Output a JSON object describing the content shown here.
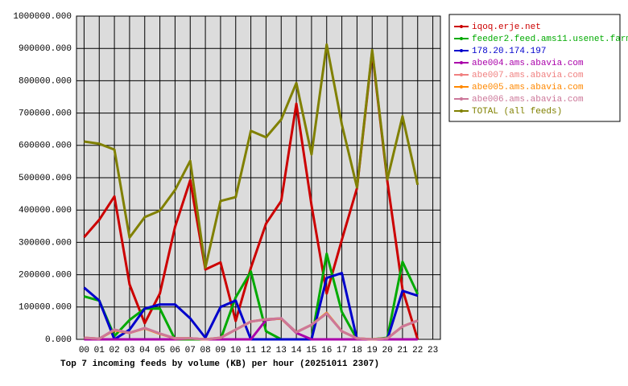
{
  "chart_data": {
    "type": "line",
    "title": "Top 7 incoming feeds by volume (KB) per hour (20251011 2307)",
    "categories": [
      "00",
      "01",
      "02",
      "03",
      "04",
      "05",
      "06",
      "07",
      "08",
      "09",
      "10",
      "11",
      "12",
      "13",
      "14",
      "15",
      "16",
      "17",
      "18",
      "19",
      "20",
      "21",
      "22",
      "23"
    ],
    "ylim": [
      0,
      1000000
    ],
    "yticks": [
      {
        "value": 0,
        "label": "0.000"
      },
      {
        "value": 100000,
        "label": "100000.000"
      },
      {
        "value": 200000,
        "label": "200000.000"
      },
      {
        "value": 300000,
        "label": "300000.000"
      },
      {
        "value": 400000,
        "label": "400000.000"
      },
      {
        "value": 500000,
        "label": "500000.000"
      },
      {
        "value": 600000,
        "label": "600000.000"
      },
      {
        "value": 700000,
        "label": "700000.000"
      },
      {
        "value": 800000,
        "label": "800000.000"
      },
      {
        "value": 900000,
        "label": "900000.000"
      },
      {
        "value": 1000000,
        "label": "1000000.000"
      }
    ],
    "grid": true,
    "legend": "right",
    "series": [
      {
        "name": "iqoq.erje.net",
        "color": "#cc0000",
        "values": [
          316000,
          370000,
          442000,
          170000,
          50000,
          142000,
          348000,
          492000,
          216000,
          238000,
          57000,
          221000,
          358000,
          428000,
          729000,
          415000,
          142000,
          308000,
          468000,
          890000,
          490000,
          155000,
          0,
          null
        ]
      },
      {
        "name": "feeder2.feed.ams11.usenet.farm",
        "color": "#00aa00",
        "values": [
          133000,
          120000,
          10000,
          60000,
          95000,
          95000,
          0,
          0,
          0,
          0,
          130000,
          210000,
          25000,
          0,
          0,
          0,
          265000,
          85000,
          0,
          0,
          5000,
          240000,
          140000,
          null
        ]
      },
      {
        "name": "178.20.174.197",
        "color": "#0000cc",
        "values": [
          160000,
          120000,
          0,
          30000,
          95000,
          108000,
          108000,
          65000,
          5000,
          100000,
          120000,
          0,
          0,
          0,
          0,
          0,
          190000,
          205000,
          0,
          0,
          0,
          150000,
          135000,
          null
        ]
      },
      {
        "name": "abe004.ams.abavia.com",
        "color": "#aa00aa",
        "values": [
          0,
          0,
          0,
          0,
          0,
          0,
          0,
          3000,
          0,
          0,
          0,
          0,
          60000,
          65000,
          20000,
          0,
          0,
          0,
          0,
          0,
          0,
          0,
          0,
          null
        ]
      },
      {
        "name": "abe007.ams.abavia.com",
        "color": "#f08080",
        "values": [
          5000,
          2000,
          30000,
          20000,
          35000,
          18000,
          3000,
          3000,
          0,
          5000,
          30000,
          55000,
          62000,
          65000,
          22000,
          45000,
          80000,
          25000,
          3000,
          0,
          3000,
          40000,
          58000,
          null
        ]
      },
      {
        "name": "abe005.ams.abavia.com",
        "color": "#ff8800",
        "values": [
          5000,
          2000,
          28000,
          20000,
          34000,
          17000,
          3000,
          3000,
          0,
          5000,
          30000,
          55000,
          62000,
          64000,
          22000,
          45000,
          82000,
          25000,
          3000,
          0,
          3000,
          40000,
          58000,
          null
        ]
      },
      {
        "name": "abe006.ams.abavia.com",
        "color": "#cc7799",
        "values": [
          5000,
          2000,
          30000,
          20000,
          35000,
          18000,
          3000,
          3000,
          0,
          5000,
          30000,
          55000,
          62000,
          65000,
          22000,
          45000,
          80000,
          25000,
          3000,
          0,
          3000,
          40000,
          58000,
          null
        ]
      },
      {
        "name": "TOTAL (all feeds)",
        "color": "#808000",
        "values": [
          612000,
          605000,
          587000,
          315000,
          378000,
          398000,
          462000,
          552000,
          222000,
          428000,
          440000,
          645000,
          625000,
          680000,
          793000,
          572000,
          912000,
          665000,
          470000,
          895000,
          495000,
          690000,
          478000,
          null
        ]
      }
    ]
  }
}
